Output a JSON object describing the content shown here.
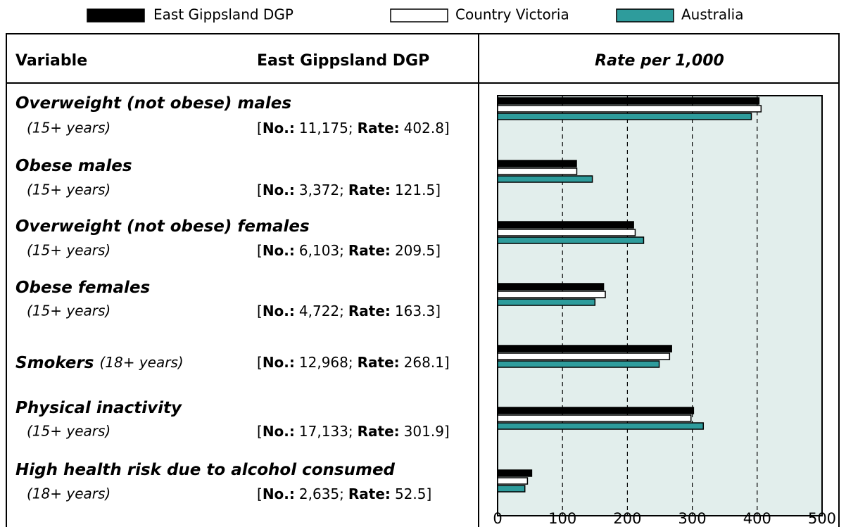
{
  "chart_data": {
    "type": "bar",
    "orientation": "horizontal",
    "title": "Rate per 1,000",
    "categories": [
      "Overweight (not obese) males",
      "Obese males",
      "Overweight (not obese) females",
      "Obese females",
      "Smokers",
      "Physical inactivity",
      "High health risk due to alcohol consumed"
    ],
    "series": [
      {
        "name": "East Gippsland DGP",
        "color": "#000000",
        "values": [
          402.8,
          121.5,
          209.5,
          163.3,
          268.1,
          301.9,
          52.5
        ]
      },
      {
        "name": "Country Victoria",
        "color": "#ffffff",
        "values": [
          406,
          122,
          212,
          166,
          265,
          298,
          46
        ]
      },
      {
        "name": "Australia",
        "color": "#2e9c9c",
        "values": [
          391,
          146,
          225,
          150,
          249,
          317,
          42
        ]
      }
    ],
    "xlim": [
      0,
      500
    ],
    "xticks": [
      0,
      100,
      200,
      300,
      400,
      500
    ],
    "grid": true,
    "legend": "top",
    "background": "#e2eeec"
  },
  "table": {
    "headers": [
      "Variable",
      "East Gippsland DGP"
    ],
    "ages": [
      "(15+ years)",
      "(15+ years)",
      "(15+ years)",
      "(15+ years)",
      "(18+ years)",
      "(15+ years)",
      "(18+ years)"
    ],
    "numbers": [
      "11,175",
      "3,372",
      "6,103",
      "4,722",
      "12,968",
      "17,133",
      "2,635"
    ],
    "labels": {
      "open": "[",
      "no": "No.:",
      "sep": ";",
      "rate": "Rate:",
      "close": "]"
    }
  }
}
